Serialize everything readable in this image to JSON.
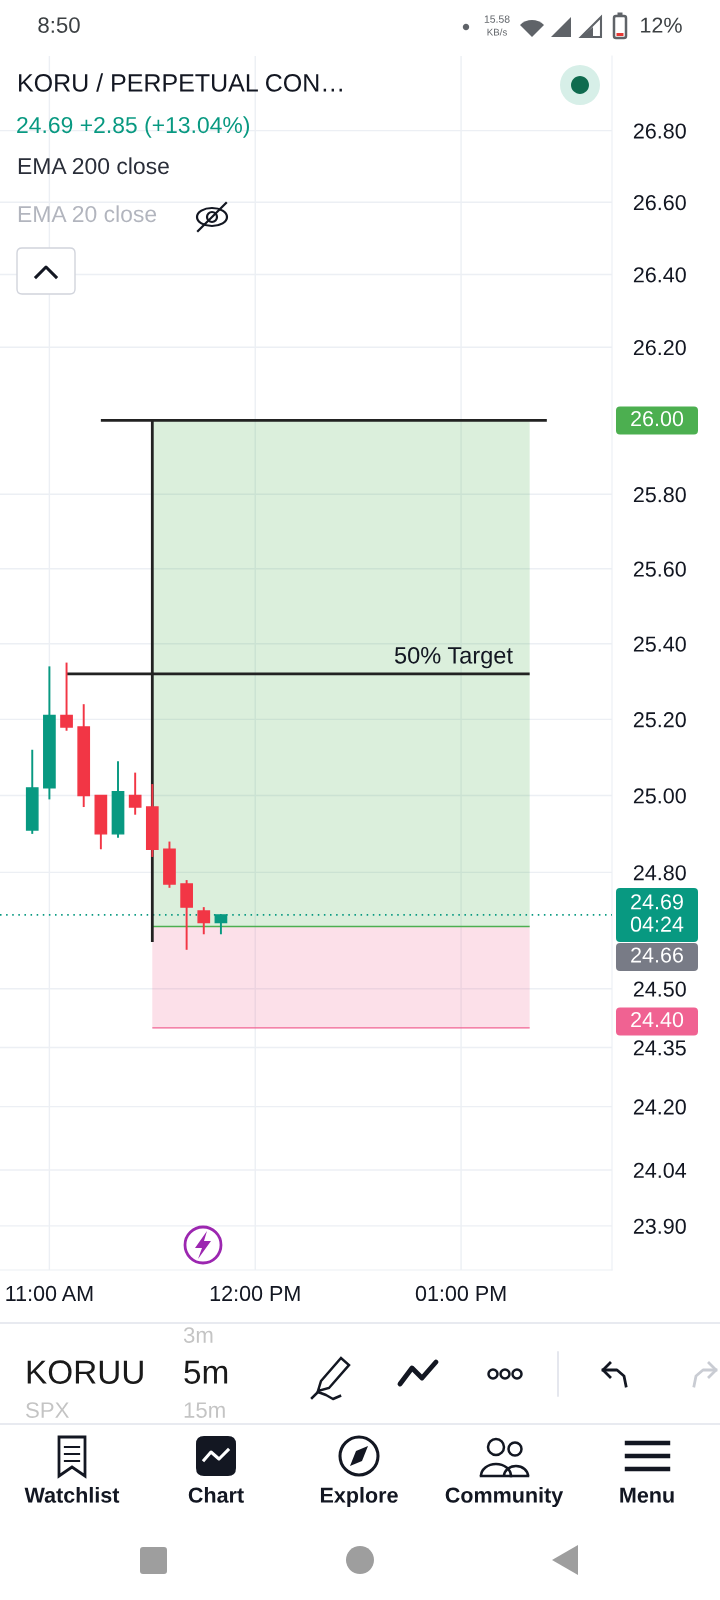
{
  "chart_data": {
    "type": "candlestick",
    "title": "KORU / PERPETUAL CON…",
    "subtitle": "24.69 +2.85 (+13.04%)",
    "x": [
      10.9167,
      11.0,
      11.0833,
      11.1667,
      11.25,
      11.3333,
      11.4167,
      11.5,
      11.5833,
      11.6667,
      11.75,
      11.8333
    ],
    "ohlc": [
      [
        24.91,
        25.12,
        24.9,
        25.02
      ],
      [
        25.02,
        25.34,
        24.99,
        25.21
      ],
      [
        25.21,
        25.35,
        25.17,
        25.18
      ],
      [
        25.18,
        25.24,
        24.97,
        25.0
      ],
      [
        25.0,
        25.0,
        24.86,
        24.9
      ],
      [
        24.9,
        25.09,
        24.89,
        25.01
      ],
      [
        25.0,
        25.06,
        24.95,
        24.97
      ],
      [
        24.97,
        25.03,
        24.84,
        24.86
      ],
      [
        24.86,
        24.88,
        24.76,
        24.77
      ],
      [
        24.77,
        24.78,
        24.6,
        24.71
      ],
      [
        24.7,
        24.71,
        24.64,
        24.67
      ],
      [
        24.67,
        24.69,
        24.64,
        24.69
      ]
    ],
    "colors": [
      "#089981",
      "#089981",
      "#f23645",
      "#f23645",
      "#f23645",
      "#089981",
      "#f23645",
      "#f23645",
      "#f23645",
      "#f23645",
      "#f23645",
      "#089981"
    ],
    "series": [
      {
        "type": "line",
        "x": [
          11.5,
          13.3333
        ],
        "values": [
          24.66,
          24.66
        ],
        "lower": [
          24.66,
          24.66
        ],
        "upper": [
          26.0,
          26.0
        ],
        "color": "#4caf50"
      },
      {
        "type": "line",
        "x": [
          11.5,
          13.3333
        ],
        "values": [
          24.4,
          24.4
        ],
        "lower": [
          24.4,
          24.4
        ],
        "upper": [
          24.66,
          24.66
        ],
        "color": "#f06292"
      },
      {
        "type": "line",
        "x": [
          11.25,
          13.4167
        ],
        "values": [
          26.0,
          26.0
        ],
        "color": "#222222"
      },
      {
        "type": "line",
        "x": [
          11.0833,
          13.3333
        ],
        "values": [
          25.32,
          25.32
        ],
        "color": "#222222"
      },
      {
        "type": "line",
        "x": [
          11.5,
          11.5
        ],
        "values": [
          26.0,
          24.62
        ],
        "color": "#222222"
      }
    ],
    "log": true,
    "ylim": [
      23.79,
      27.01
    ],
    "yticks": [
      {
        "value": 26.8,
        "label": "26.80"
      },
      {
        "value": 26.6,
        "label": "26.60"
      },
      {
        "value": 26.4,
        "label": "26.40"
      },
      {
        "value": 26.2,
        "label": "26.20"
      },
      {
        "value": 25.8,
        "label": "25.80"
      },
      {
        "value": 25.6,
        "label": "25.60"
      },
      {
        "value": 25.4,
        "label": "25.40"
      },
      {
        "value": 25.2,
        "label": "25.20"
      },
      {
        "value": 25.0,
        "label": "25.00"
      },
      {
        "value": 24.8,
        "label": "24.80"
      },
      {
        "value": 24.5,
        "label": "24.50"
      },
      {
        "value": 24.35,
        "label": "24.35"
      },
      {
        "value": 24.2,
        "label": "24.20"
      },
      {
        "value": 24.04,
        "label": "24.04"
      },
      {
        "value": 23.9,
        "label": "23.90"
      }
    ],
    "xlim": [
      10.76,
      13.7333
    ],
    "xticks": [
      {
        "value": 11,
        "label": "11:00 AM"
      },
      {
        "value": 12,
        "label": "12:00 PM"
      },
      {
        "value": 13,
        "label": "01:00 PM"
      }
    ],
    "grid": true,
    "ref_lines": [
      {
        "axis": "y",
        "value": 24.69,
        "label": "24.69\n04:24",
        "color": "#089981",
        "line_style": "dotted"
      }
    ],
    "annotations": [
      {
        "text": "50% Target",
        "x": 13.3333,
        "y": 25.32
      },
      "26.00",
      "24.66",
      "24.40",
      "EMA 200 close",
      "EMA 20 close",
      "8:50",
      "15.58",
      "KB/s",
      "12%",
      "3m",
      "KORUU",
      "5m",
      "SPX",
      "15m",
      "Watchlist",
      "Chart",
      "Explore",
      "Community",
      "Menu"
    ]
  }
}
